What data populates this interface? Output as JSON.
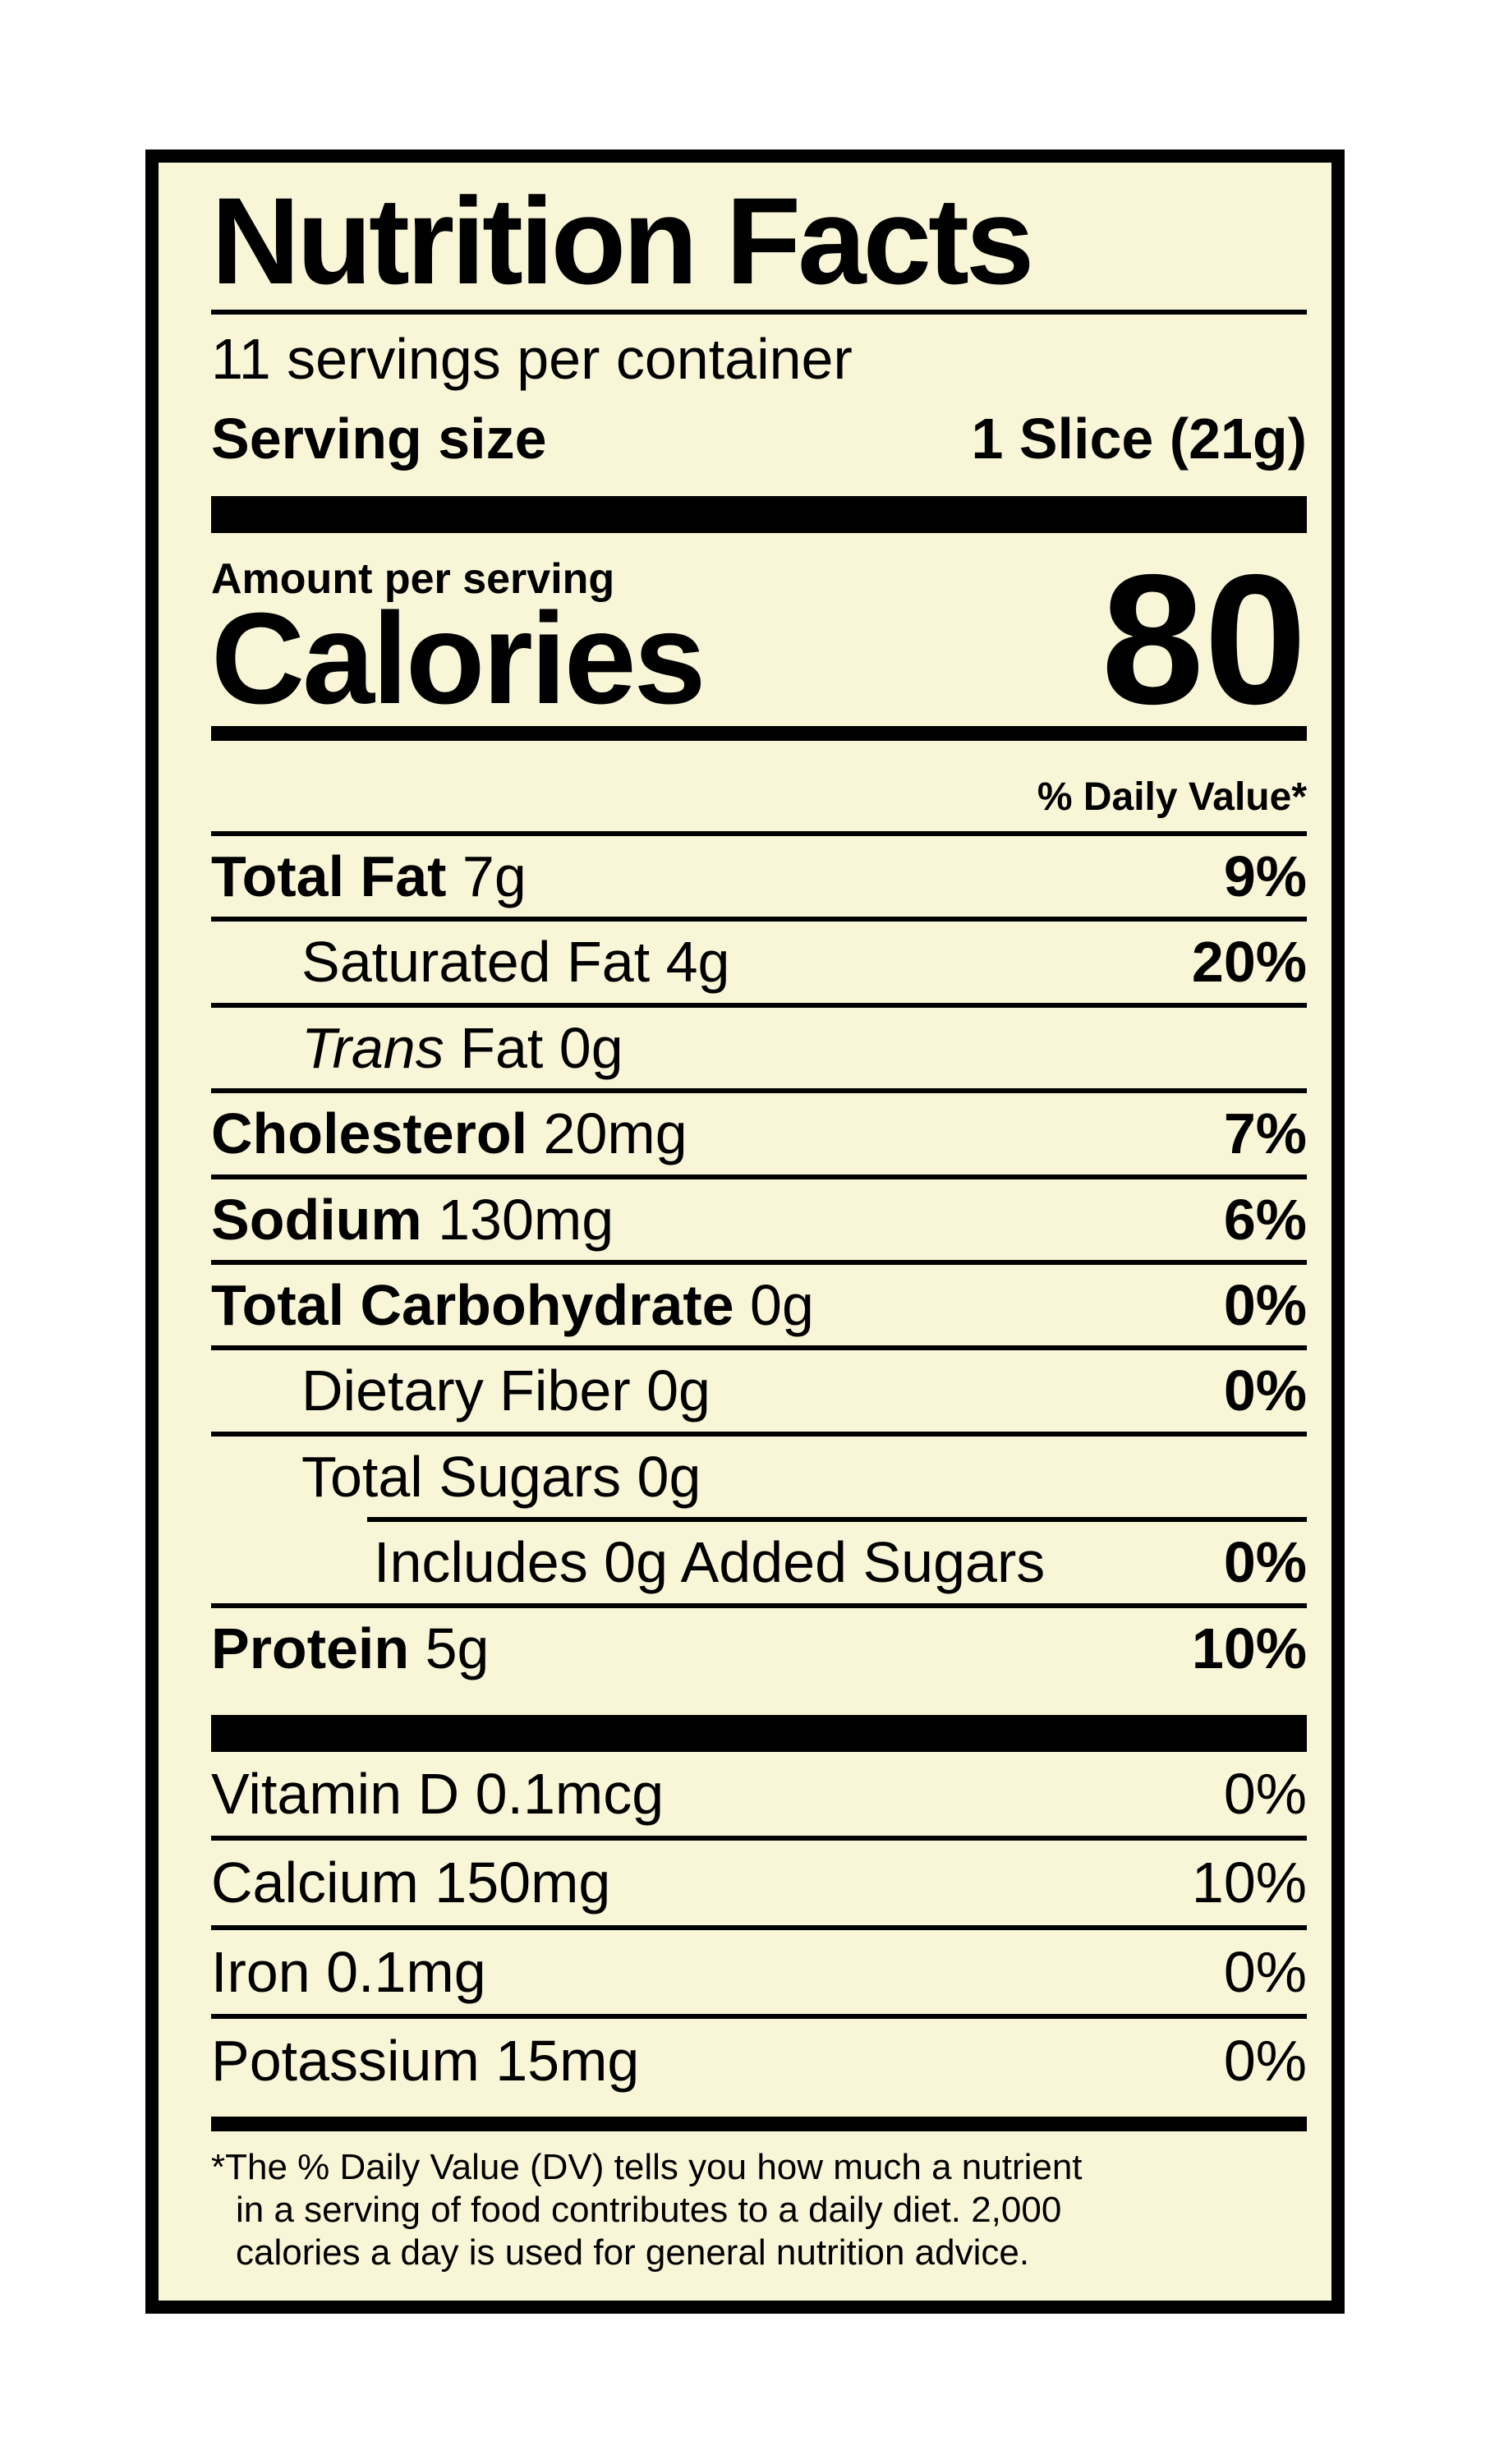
{
  "label": {
    "title": "Nutrition Facts",
    "servings_per_container": "11 servings per container",
    "serving_size": {
      "label": "Serving size",
      "value": "1 Slice (21g)"
    },
    "amount_per_serving": "Amount per serving",
    "calories": {
      "label": "Calories",
      "value": "80"
    },
    "daily_value_header": "% Daily Value*",
    "rows": [
      {
        "bold": "Total Fat",
        "rest": " 7g",
        "dv": "9%"
      },
      {
        "rest": "Saturated Fat 4g",
        "dv": "20%"
      },
      {
        "italic": "Trans",
        "rest": " Fat 0g",
        "dv": ""
      },
      {
        "bold": "Cholesterol",
        "rest": " 20mg",
        "dv": "7%"
      },
      {
        "bold": "Sodium",
        "rest": " 130mg",
        "dv": "6%"
      },
      {
        "bold": "Total Carbohydrate",
        "rest": " 0g",
        "dv": "0%"
      },
      {
        "rest": "Dietary Fiber 0g",
        "dv": "0%"
      },
      {
        "rest": "Total Sugars 0g",
        "dv": ""
      },
      {
        "rest": "Includes 0g Added Sugars",
        "dv": "0%"
      },
      {
        "bold": "Protein",
        "rest": " 5g",
        "dv": "10%"
      }
    ],
    "micronutrients": [
      {
        "name": "Vitamin D 0.1mcg",
        "dv": "0%"
      },
      {
        "name": "Calcium 150mg",
        "dv": "10%"
      },
      {
        "name": "Iron 0.1mg",
        "dv": "0%"
      },
      {
        "name": "Potassium 15mg",
        "dv": "0%"
      }
    ],
    "footnote_lines": [
      "*The % Daily Value (DV) tells you how much a nutrient",
      "in a serving of food contributes to a daily diet. 2,000",
      "calories a day is used for general nutrition advice."
    ],
    "colors": {
      "label_background": "#f9f6d7",
      "text": "#000000",
      "page_background": "#ffffff"
    }
  }
}
